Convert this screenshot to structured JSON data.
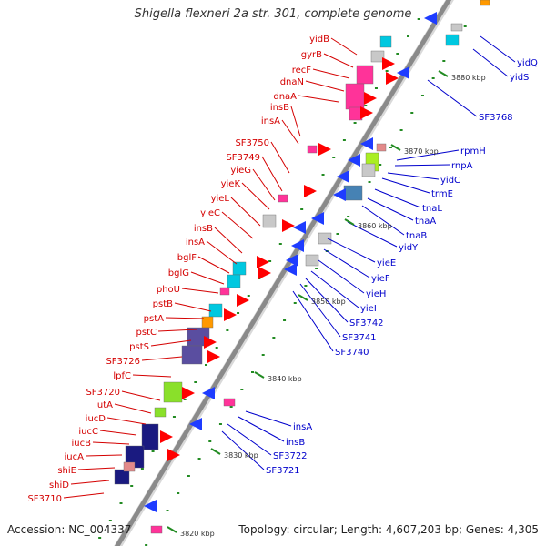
{
  "title": "Shigella flexneri 2a str. 301, complete genome",
  "footer": {
    "accession": "Accession: NC_004337",
    "summary": "Topology: circular; Length: 4,607,203 bp; Genes: 4,305"
  },
  "colors": {
    "forward_label": "#d40000",
    "reverse_label": "#0000cc",
    "backbone": "#8a8a8a",
    "tick": "#228b22"
  },
  "kbp_marks": [
    "3820 kbp",
    "3830 kbp",
    "3840 kbp",
    "3850 kbp",
    "3860 kbp",
    "3870 kbp",
    "3880 kbp"
  ],
  "genes_left": [
    "yidB",
    "gyrB",
    "recF",
    "dnaN",
    "dnaA",
    "insB",
    "insA",
    "SF3750",
    "SF3749",
    "yieG",
    "yieK",
    "yieL",
    "yieC",
    "insB",
    "insA",
    "bglF",
    "bglG",
    "phoU",
    "pstB",
    "pstA",
    "pstC",
    "pstS",
    "SF3726",
    "lpfC",
    "SF3720",
    "iutA",
    "iucD",
    "iucC",
    "iucB",
    "iucA",
    "shiE",
    "shiD",
    "SF3710"
  ],
  "genes_right": [
    "yidQ",
    "yidS",
    "SF3768",
    "rpmH",
    "rnpA",
    "yidC",
    "trmE",
    "tnaL",
    "tnaA",
    "tnaB",
    "yidY",
    "yieE",
    "yieF",
    "yieH",
    "yieI",
    "SF3742",
    "SF3741",
    "SF3740",
    "insA",
    "insB",
    "SF3722",
    "SF3721"
  ]
}
